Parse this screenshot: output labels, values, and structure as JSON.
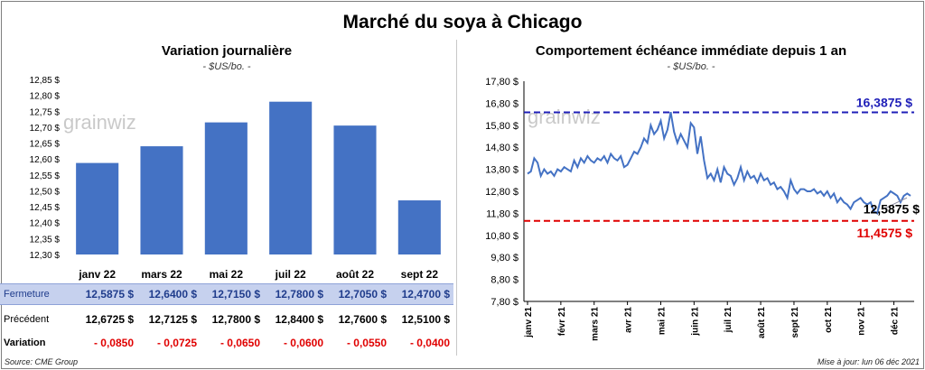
{
  "title": "Marché du soya à Chicago",
  "source": "Source: CME Group",
  "updated": "Mise à jour: lun 06 déc 2021",
  "watermark": "grainwiz",
  "colors": {
    "bar": "#4472c4",
    "line": "#4472c4",
    "high": "#1f1fb8",
    "low": "#e00000",
    "table_bg": "#c6d1ee"
  },
  "left_panel": {
    "title": "Variation  journalière",
    "unit": "- $US/bo. -",
    "table": {
      "rows": [
        {
          "label": "Fermeture",
          "values": [
            "12,5875  $",
            "12,6400  $",
            "12,7150  $",
            "12,7800  $",
            "12,7050  $",
            "12,4700  $"
          ]
        },
        {
          "label": "Précédent",
          "values": [
            "12,6725  $",
            "12,7125  $",
            "12,7800  $",
            "12,8400  $",
            "12,7600  $",
            "12,5100  $"
          ]
        },
        {
          "label": "Variation",
          "values": [
            "- 0,0850",
            "- 0,0725",
            "- 0,0650",
            "- 0,0600",
            "- 0,0550",
            "- 0,0400"
          ]
        }
      ]
    }
  },
  "right_panel": {
    "title": "Comportement  échéance immédiate depuis 1 an",
    "unit": "- $US/bo. -",
    "high_label": "16,3875 $",
    "low_label": "11,4575 $",
    "last_label": "12,5875 $"
  },
  "chart_data": [
    {
      "type": "bar",
      "categories": [
        "janv 22",
        "mars 22",
        "mai 22",
        "juil 22",
        "août 22",
        "sept 22"
      ],
      "values": [
        12.5875,
        12.64,
        12.715,
        12.78,
        12.705,
        12.47
      ],
      "ylim": [
        12.3,
        12.85
      ],
      "yticks": [
        "12,30 $",
        "12,35 $",
        "12,40 $",
        "12,45 $",
        "12,50 $",
        "12,55 $",
        "12,60 $",
        "12,65 $",
        "12,70 $",
        "12,75 $",
        "12,80 $",
        "12,85 $"
      ],
      "title": "Variation  journalière"
    },
    {
      "type": "line",
      "title": "Comportement  échéance immédiate depuis 1 an",
      "ylim": [
        7.8,
        17.8
      ],
      "yticks": [
        "7,80 $",
        "8,80 $",
        "9,80 $",
        "10,80 $",
        "11,80 $",
        "12,80 $",
        "13,80 $",
        "14,80 $",
        "15,80 $",
        "16,80 $",
        "17,80 $"
      ],
      "xticks": [
        "janv 21",
        "févr 21",
        "mars 21",
        "avr 21",
        "mai 21",
        "juin 21",
        "juil 21",
        "août 21",
        "sept 21",
        "oct 21",
        "nov 21",
        "déc 21"
      ],
      "xtick_pos": [
        0,
        1,
        2,
        3,
        4,
        5,
        6,
        7,
        8,
        9,
        10,
        11
      ],
      "x": [
        0,
        0.1,
        0.2,
        0.3,
        0.4,
        0.5,
        0.6,
        0.7,
        0.8,
        0.9,
        1.0,
        1.1,
        1.2,
        1.3,
        1.4,
        1.5,
        1.6,
        1.7,
        1.8,
        1.9,
        2.0,
        2.1,
        2.2,
        2.3,
        2.4,
        2.5,
        2.6,
        2.7,
        2.8,
        2.9,
        3.0,
        3.1,
        3.2,
        3.3,
        3.4,
        3.5,
        3.6,
        3.7,
        3.8,
        3.9,
        4.0,
        4.1,
        4.2,
        4.3,
        4.4,
        4.5,
        4.6,
        4.7,
        4.8,
        4.9,
        5.0,
        5.1,
        5.2,
        5.3,
        5.4,
        5.5,
        5.6,
        5.7,
        5.8,
        5.9,
        6.0,
        6.1,
        6.2,
        6.3,
        6.4,
        6.5,
        6.6,
        6.7,
        6.8,
        6.9,
        7.0,
        7.1,
        7.2,
        7.3,
        7.4,
        7.5,
        7.6,
        7.7,
        7.8,
        7.9,
        8.0,
        8.1,
        8.2,
        8.3,
        8.4,
        8.5,
        8.6,
        8.7,
        8.8,
        8.9,
        9.0,
        9.1,
        9.2,
        9.3,
        9.4,
        9.5,
        9.6,
        9.7,
        9.8,
        9.9,
        10.0,
        10.1,
        10.2,
        10.3,
        10.4,
        10.5,
        10.6,
        10.7,
        10.8,
        10.9,
        11.0,
        11.1,
        11.2,
        11.3,
        11.4,
        11.5
      ],
      "values": [
        13.6,
        13.7,
        14.3,
        14.1,
        13.5,
        13.8,
        13.6,
        13.7,
        13.5,
        13.8,
        13.7,
        13.9,
        13.8,
        13.7,
        14.2,
        13.9,
        14.3,
        14.1,
        14.4,
        14.2,
        14.1,
        14.3,
        14.2,
        14.4,
        14.1,
        14.5,
        14.3,
        14.2,
        14.4,
        13.9,
        14.0,
        14.3,
        14.6,
        14.5,
        14.8,
        15.2,
        15.0,
        15.8,
        15.4,
        15.6,
        16.0,
        15.2,
        15.6,
        16.4,
        15.5,
        15.0,
        15.4,
        15.1,
        14.8,
        15.9,
        15.7,
        14.5,
        15.3,
        14.2,
        13.4,
        13.6,
        13.3,
        13.8,
        13.2,
        13.9,
        13.6,
        13.5,
        13.1,
        13.4,
        13.9,
        13.3,
        13.7,
        13.4,
        13.5,
        13.2,
        13.6,
        13.3,
        13.4,
        13.1,
        13.2,
        12.9,
        13.0,
        12.8,
        12.5,
        13.3,
        12.9,
        12.7,
        12.9,
        12.9,
        12.8,
        12.8,
        12.9,
        12.7,
        12.8,
        12.6,
        12.8,
        12.5,
        12.7,
        12.3,
        12.5,
        12.3,
        12.2,
        12.0,
        12.3,
        12.4,
        12.5,
        12.3,
        12.2,
        12.3,
        11.9,
        11.8,
        12.4,
        12.5,
        12.6,
        12.8,
        12.7,
        12.6,
        12.3,
        12.6,
        12.7,
        12.6
      ],
      "hlines": [
        {
          "value": 16.3875,
          "label": "16,3875 $"
        },
        {
          "value": 11.4575,
          "label": "11,4575 $"
        }
      ],
      "last": {
        "value": 12.5875,
        "label": "12,5875 $"
      }
    }
  ]
}
